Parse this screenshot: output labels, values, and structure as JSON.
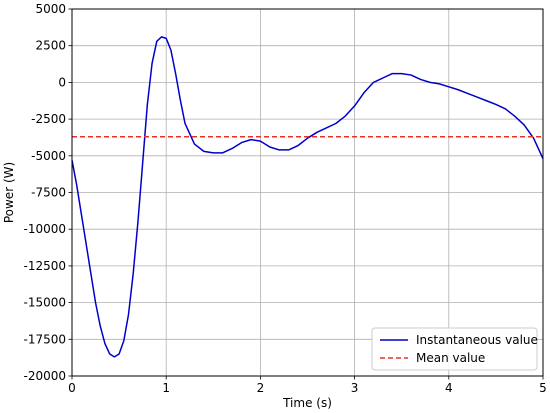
{
  "chart_data": {
    "type": "line",
    "xlabel": "Time (s)",
    "ylabel": "Power (W)",
    "xlim": [
      0,
      5
    ],
    "ylim": [
      -20000,
      5000
    ],
    "xticks": [
      0,
      1,
      2,
      3,
      4,
      5
    ],
    "yticks": [
      -20000,
      -17500,
      -15000,
      -12500,
      -10000,
      -7500,
      -5000,
      -2500,
      0,
      2500,
      5000
    ],
    "grid": true,
    "legend_position": "bottom-right",
    "series": [
      {
        "name": "Instantaneous value",
        "color": "#0000cc",
        "style": "solid",
        "x": [
          0.0,
          0.05,
          0.1,
          0.15,
          0.2,
          0.25,
          0.3,
          0.35,
          0.4,
          0.45,
          0.5,
          0.55,
          0.6,
          0.65,
          0.7,
          0.75,
          0.8,
          0.85,
          0.9,
          0.95,
          1.0,
          1.05,
          1.1,
          1.15,
          1.2,
          1.3,
          1.4,
          1.5,
          1.6,
          1.7,
          1.8,
          1.9,
          2.0,
          2.1,
          2.2,
          2.3,
          2.4,
          2.5,
          2.6,
          2.7,
          2.8,
          2.9,
          3.0,
          3.1,
          3.2,
          3.3,
          3.4,
          3.5,
          3.6,
          3.7,
          3.8,
          3.9,
          4.0,
          4.1,
          4.2,
          4.3,
          4.4,
          4.5,
          4.6,
          4.7,
          4.8,
          4.9,
          5.0
        ],
        "y": [
          -5300,
          -7000,
          -9000,
          -11000,
          -13000,
          -15000,
          -16600,
          -17800,
          -18500,
          -18700,
          -18500,
          -17600,
          -15800,
          -13000,
          -9500,
          -5500,
          -1500,
          1300,
          2800,
          3100,
          3000,
          2200,
          600,
          -1200,
          -2800,
          -4200,
          -4700,
          -4800,
          -4800,
          -4500,
          -4100,
          -3900,
          -4000,
          -4400,
          -4600,
          -4600,
          -4300,
          -3800,
          -3400,
          -3100,
          -2800,
          -2300,
          -1600,
          -700,
          0,
          300,
          600,
          600,
          500,
          200,
          0,
          -100,
          -300,
          -500,
          -750,
          -1000,
          -1250,
          -1500,
          -1800,
          -2300,
          -2900,
          -3800,
          -5200
        ]
      },
      {
        "name": "Mean value",
        "color": "#e8312a",
        "style": "dashed",
        "x": [
          0,
          5
        ],
        "y": [
          -3700,
          -3700
        ]
      }
    ]
  }
}
